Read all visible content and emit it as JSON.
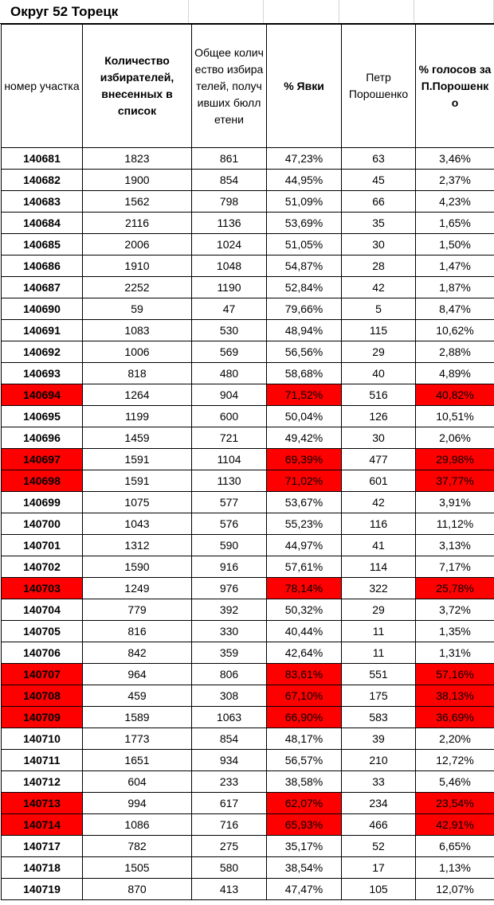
{
  "title": "Округ 52 Торецк",
  "headers": {
    "station": "номер участка",
    "voters": "Количество избирателей, внесенных в список",
    "ballots": "Общее количество избирателей, получивших бюллетени",
    "turnout": "% Явки",
    "poroshenko": "Петр Порошенко",
    "pct": "% голосов за П.Порошенко"
  },
  "highlight_color": "#ff0000",
  "rows": [
    {
      "station": "140681",
      "voters": "1823",
      "ballots": "861",
      "turnout": "47,23%",
      "poroshenko": "63",
      "pct": "3,46%",
      "highlight": false
    },
    {
      "station": "140682",
      "voters": "1900",
      "ballots": "854",
      "turnout": "44,95%",
      "poroshenko": "45",
      "pct": "2,37%",
      "highlight": false
    },
    {
      "station": "140683",
      "voters": "1562",
      "ballots": "798",
      "turnout": "51,09%",
      "poroshenko": "66",
      "pct": "4,23%",
      "highlight": false
    },
    {
      "station": "140684",
      "voters": "2116",
      "ballots": "1136",
      "turnout": "53,69%",
      "poroshenko": "35",
      "pct": "1,65%",
      "highlight": false
    },
    {
      "station": "140685",
      "voters": "2006",
      "ballots": "1024",
      "turnout": "51,05%",
      "poroshenko": "30",
      "pct": "1,50%",
      "highlight": false
    },
    {
      "station": "140686",
      "voters": "1910",
      "ballots": "1048",
      "turnout": "54,87%",
      "poroshenko": "28",
      "pct": "1,47%",
      "highlight": false
    },
    {
      "station": "140687",
      "voters": "2252",
      "ballots": "1190",
      "turnout": "52,84%",
      "poroshenko": "42",
      "pct": "1,87%",
      "highlight": false
    },
    {
      "station": "140690",
      "voters": "59",
      "ballots": "47",
      "turnout": "79,66%",
      "poroshenko": "5",
      "pct": "8,47%",
      "highlight": false
    },
    {
      "station": "140691",
      "voters": "1083",
      "ballots": "530",
      "turnout": "48,94%",
      "poroshenko": "115",
      "pct": "10,62%",
      "highlight": false
    },
    {
      "station": "140692",
      "voters": "1006",
      "ballots": "569",
      "turnout": "56,56%",
      "poroshenko": "29",
      "pct": "2,88%",
      "highlight": false
    },
    {
      "station": "140693",
      "voters": "818",
      "ballots": "480",
      "turnout": "58,68%",
      "poroshenko": "40",
      "pct": "4,89%",
      "highlight": false
    },
    {
      "station": "140694",
      "voters": "1264",
      "ballots": "904",
      "turnout": "71,52%",
      "poroshenko": "516",
      "pct": "40,82%",
      "highlight": true
    },
    {
      "station": "140695",
      "voters": "1199",
      "ballots": "600",
      "turnout": "50,04%",
      "poroshenko": "126",
      "pct": "10,51%",
      "highlight": false
    },
    {
      "station": "140696",
      "voters": "1459",
      "ballots": "721",
      "turnout": "49,42%",
      "poroshenko": "30",
      "pct": "2,06%",
      "highlight": false
    },
    {
      "station": "140697",
      "voters": "1591",
      "ballots": "1104",
      "turnout": "69,39%",
      "poroshenko": "477",
      "pct": "29,98%",
      "highlight": true
    },
    {
      "station": "140698",
      "voters": "1591",
      "ballots": "1130",
      "turnout": "71,02%",
      "poroshenko": "601",
      "pct": "37,77%",
      "highlight": true
    },
    {
      "station": "140699",
      "voters": "1075",
      "ballots": "577",
      "turnout": "53,67%",
      "poroshenko": "42",
      "pct": "3,91%",
      "highlight": false
    },
    {
      "station": "140700",
      "voters": "1043",
      "ballots": "576",
      "turnout": "55,23%",
      "poroshenko": "116",
      "pct": "11,12%",
      "highlight": false
    },
    {
      "station": "140701",
      "voters": "1312",
      "ballots": "590",
      "turnout": "44,97%",
      "poroshenko": "41",
      "pct": "3,13%",
      "highlight": false
    },
    {
      "station": "140702",
      "voters": "1590",
      "ballots": "916",
      "turnout": "57,61%",
      "poroshenko": "114",
      "pct": "7,17%",
      "highlight": false
    },
    {
      "station": "140703",
      "voters": "1249",
      "ballots": "976",
      "turnout": "78,14%",
      "poroshenko": "322",
      "pct": "25,78%",
      "highlight": true
    },
    {
      "station": "140704",
      "voters": "779",
      "ballots": "392",
      "turnout": "50,32%",
      "poroshenko": "29",
      "pct": "3,72%",
      "highlight": false
    },
    {
      "station": "140705",
      "voters": "816",
      "ballots": "330",
      "turnout": "40,44%",
      "poroshenko": "11",
      "pct": "1,35%",
      "highlight": false
    },
    {
      "station": "140706",
      "voters": "842",
      "ballots": "359",
      "turnout": "42,64%",
      "poroshenko": "11",
      "pct": "1,31%",
      "highlight": false
    },
    {
      "station": "140707",
      "voters": "964",
      "ballots": "806",
      "turnout": "83,61%",
      "poroshenko": "551",
      "pct": "57,16%",
      "highlight": true
    },
    {
      "station": "140708",
      "voters": "459",
      "ballots": "308",
      "turnout": "67,10%",
      "poroshenko": "175",
      "pct": "38,13%",
      "highlight": true
    },
    {
      "station": "140709",
      "voters": "1589",
      "ballots": "1063",
      "turnout": "66,90%",
      "poroshenko": "583",
      "pct": "36,69%",
      "highlight": true
    },
    {
      "station": "140710",
      "voters": "1773",
      "ballots": "854",
      "turnout": "48,17%",
      "poroshenko": "39",
      "pct": "2,20%",
      "highlight": false
    },
    {
      "station": "140711",
      "voters": "1651",
      "ballots": "934",
      "turnout": "56,57%",
      "poroshenko": "210",
      "pct": "12,72%",
      "highlight": false
    },
    {
      "station": "140712",
      "voters": "604",
      "ballots": "233",
      "turnout": "38,58%",
      "poroshenko": "33",
      "pct": "5,46%",
      "highlight": false
    },
    {
      "station": "140713",
      "voters": "994",
      "ballots": "617",
      "turnout": "62,07%",
      "poroshenko": "234",
      "pct": "23,54%",
      "highlight": true
    },
    {
      "station": "140714",
      "voters": "1086",
      "ballots": "716",
      "turnout": "65,93%",
      "poroshenko": "466",
      "pct": "42,91%",
      "highlight": true
    },
    {
      "station": "140717",
      "voters": "782",
      "ballots": "275",
      "turnout": "35,17%",
      "poroshenko": "52",
      "pct": "6,65%",
      "highlight": false
    },
    {
      "station": "140718",
      "voters": "1505",
      "ballots": "580",
      "turnout": "38,54%",
      "poroshenko": "17",
      "pct": "1,13%",
      "highlight": false
    },
    {
      "station": "140719",
      "voters": "870",
      "ballots": "413",
      "turnout": "47,47%",
      "poroshenko": "105",
      "pct": "12,07%",
      "highlight": false
    }
  ]
}
